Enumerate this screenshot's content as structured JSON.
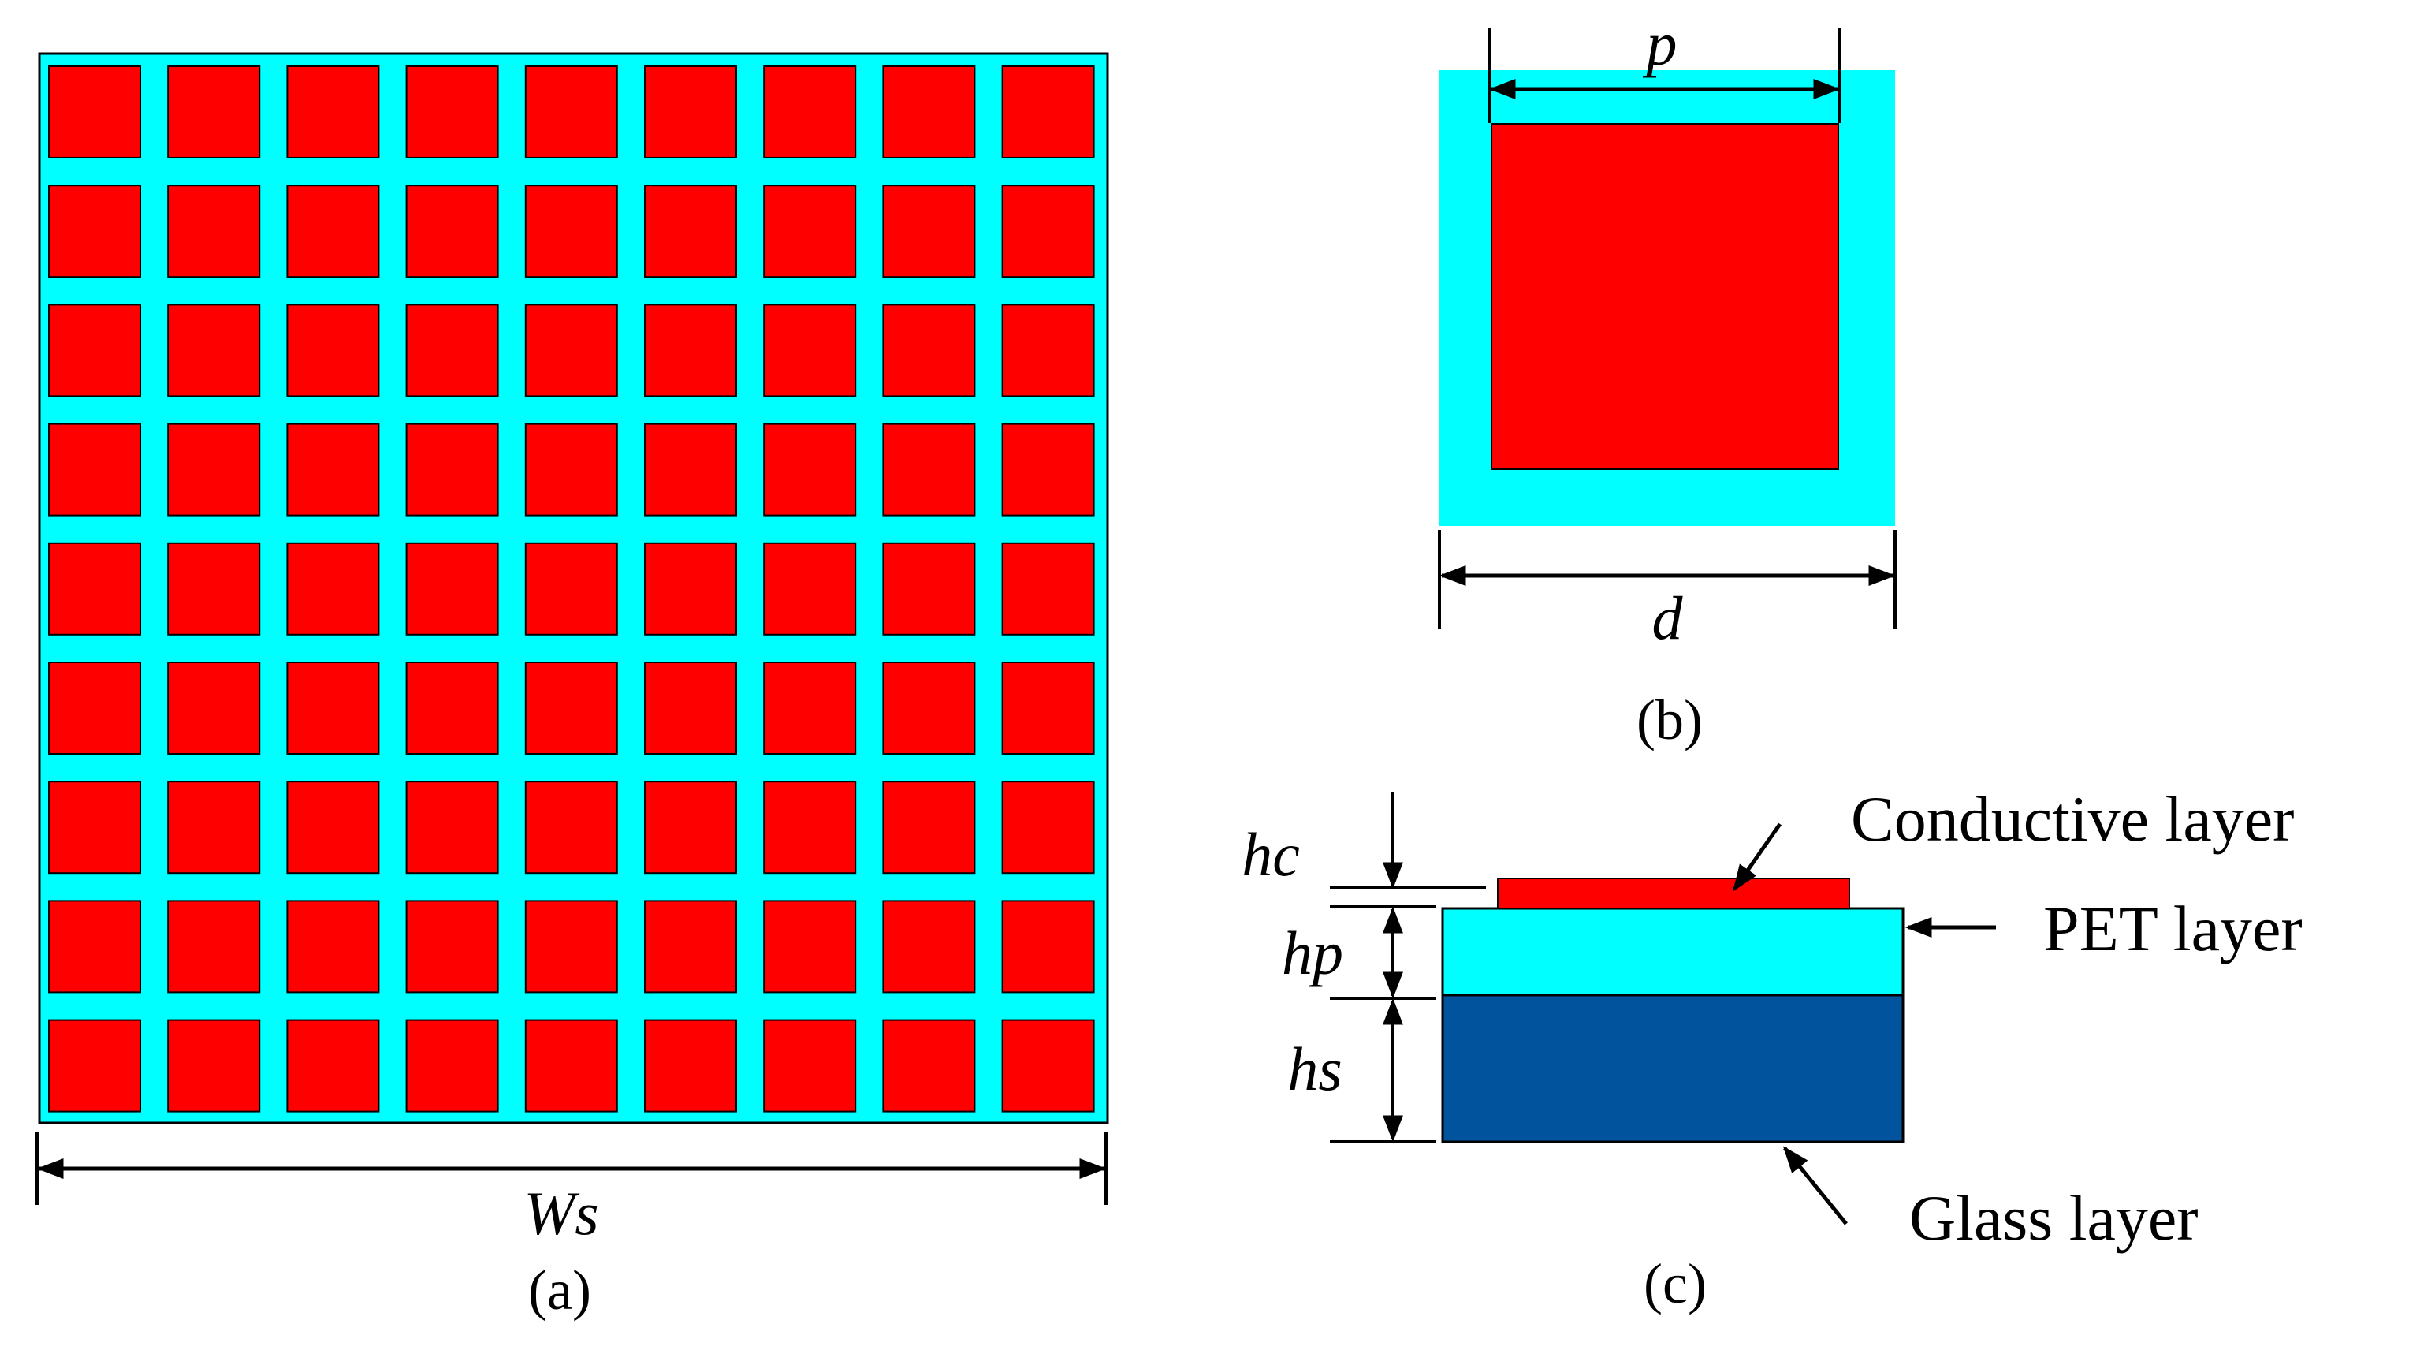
{
  "colors": {
    "substrate": "#00ffff",
    "patch": "#ff0000",
    "glass": "#00539c",
    "line": "#000000",
    "background": "#ffffff"
  },
  "panel_a": {
    "rows": 9,
    "cols": 9,
    "dimension_label": "Ws",
    "caption": "(a)"
  },
  "panel_b": {
    "patch_label": "p",
    "cell_label": "d",
    "caption": "(b)"
  },
  "panel_c": {
    "hc_label": "hc",
    "hp_label": "hp",
    "hs_label": "hs",
    "conductive_label": "Conductive layer",
    "pet_label": "PET layer",
    "glass_label": "Glass layer",
    "caption": "(c)"
  }
}
